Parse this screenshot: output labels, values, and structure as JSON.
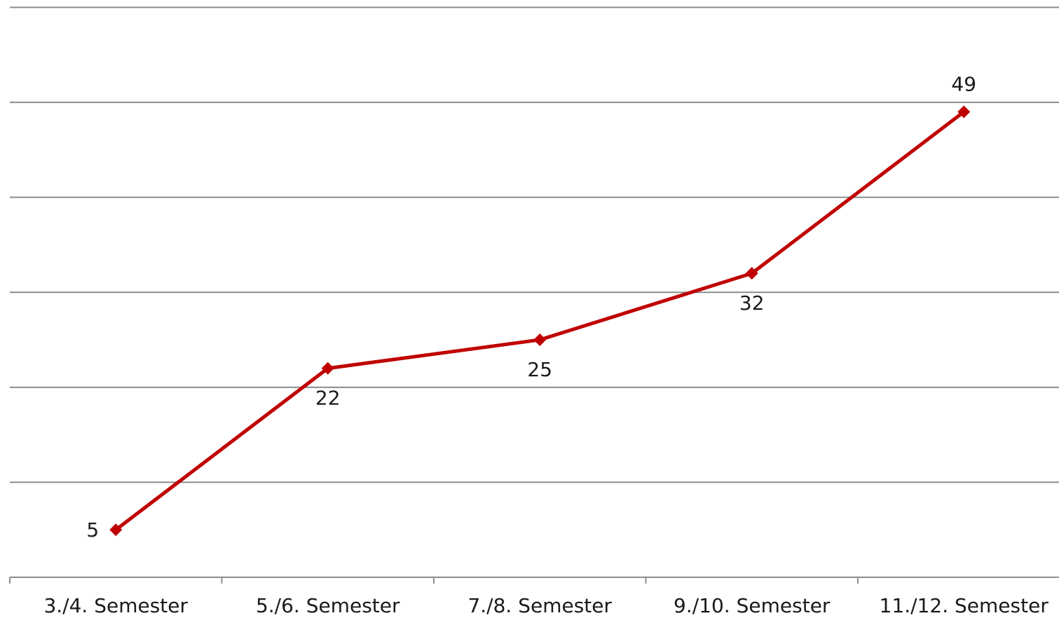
{
  "chart_data": {
    "type": "line",
    "categories": [
      "3./4. Semester",
      "5./6. Semester",
      "7./8. Semester",
      "9./10. Semester",
      "11./12. Semester"
    ],
    "series": [
      {
        "name": null,
        "color": "#c00000",
        "values": [
          5,
          22,
          25,
          32,
          49
        ]
      }
    ],
    "ylim": [
      0,
      60
    ],
    "yticks": [
      0,
      10,
      20,
      30,
      40,
      50,
      60
    ],
    "grid": true
  }
}
